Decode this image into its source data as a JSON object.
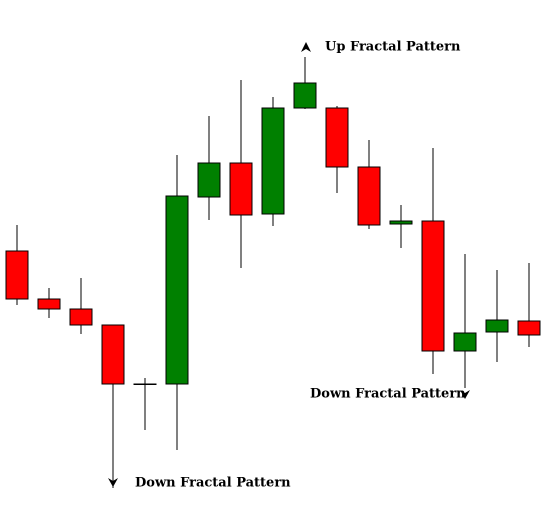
{
  "chart_data": {
    "type": "candlestick",
    "ylim": [
      0,
      524
    ],
    "open": [
      273,
      225,
      215,
      199,
      140,
      140,
      327,
      361,
      310,
      416,
      416,
      357,
      300,
      303,
      173,
      192,
      203
    ],
    "high": [
      299,
      236,
      246,
      199,
      146,
      369,
      408,
      444,
      427,
      467,
      418,
      384,
      319,
      376,
      270,
      254,
      261
    ],
    "low": [
      219,
      206,
      190,
      36,
      94,
      74,
      304,
      256,
      298,
      415,
      331,
      295,
      276,
      150,
      136,
      162,
      177
    ],
    "close": [
      225,
      215,
      199,
      140,
      140,
      328,
      361,
      309,
      416,
      441,
      357,
      299,
      303,
      173,
      191,
      204,
      189
    ],
    "up_color": "#008000",
    "down_color": "#ff0000",
    "doji_color": "#000000",
    "annotations": [
      "Up Fractal Pattern",
      "Down Fractal Pattern",
      "Down Fractal Pattern"
    ]
  }
}
